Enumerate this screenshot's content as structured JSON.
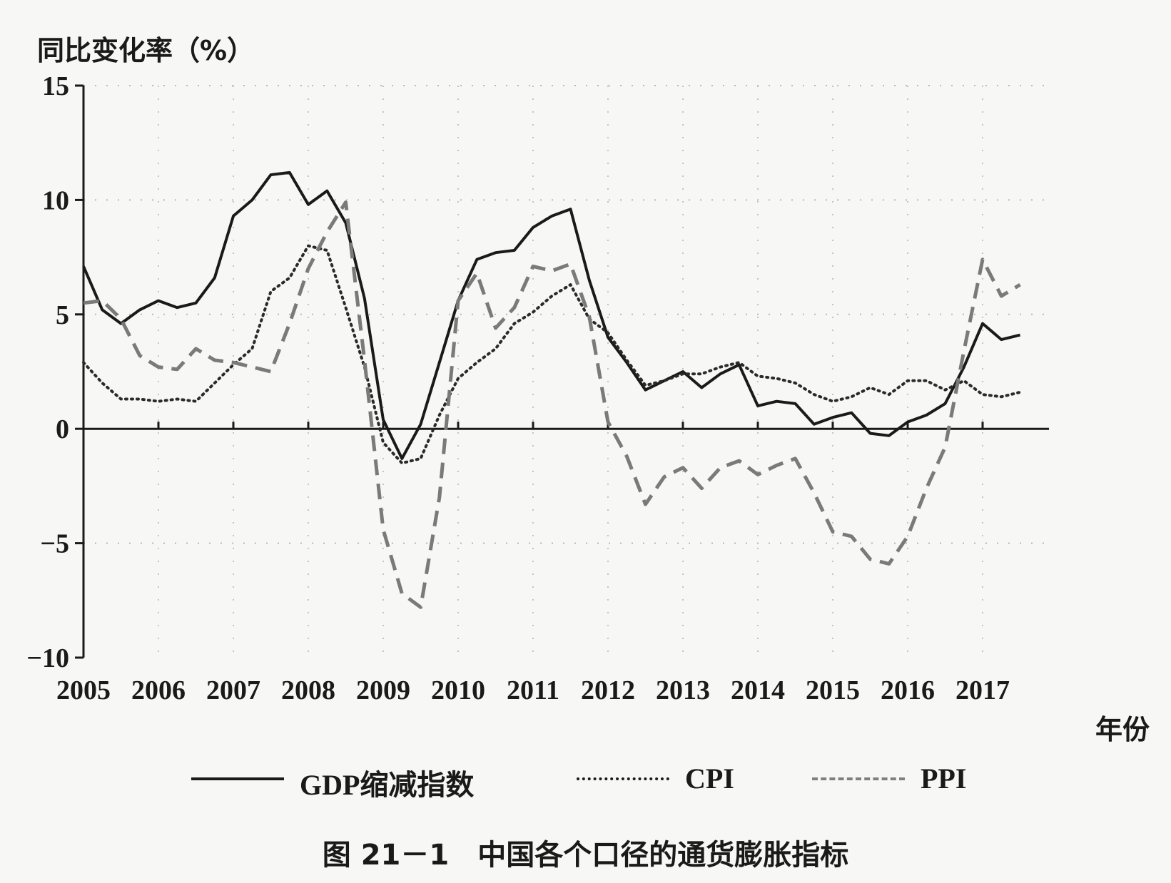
{
  "chart_data": {
    "type": "line",
    "ylabel": "同比变化率（%）",
    "xlabel": "年份",
    "ylim": [
      -10,
      15
    ],
    "yticks": [
      -10,
      -5,
      0,
      5,
      10,
      15
    ],
    "xlim": [
      2005,
      2018.2
    ],
    "xticks": [
      "2005",
      "2006",
      "2007",
      "2008",
      "2009",
      "2010",
      "2011",
      "2012",
      "2013",
      "2014",
      "2015",
      "2016",
      "2017"
    ],
    "grid": true,
    "legend_position": "bottom",
    "series": [
      {
        "name": "GDP缩减指数",
        "style": "solid",
        "points": [
          [
            2005.0,
            7.1
          ],
          [
            2005.25,
            5.2
          ],
          [
            2005.5,
            4.6
          ],
          [
            2005.75,
            5.2
          ],
          [
            2006.0,
            5.6
          ],
          [
            2006.25,
            5.3
          ],
          [
            2006.5,
            5.5
          ],
          [
            2006.75,
            6.6
          ],
          [
            2007.0,
            9.3
          ],
          [
            2007.25,
            10.0
          ],
          [
            2007.5,
            11.1
          ],
          [
            2007.75,
            11.2
          ],
          [
            2008.0,
            9.8
          ],
          [
            2008.25,
            10.4
          ],
          [
            2008.5,
            9.0
          ],
          [
            2008.75,
            5.7
          ],
          [
            2009.0,
            0.4
          ],
          [
            2009.25,
            -1.3
          ],
          [
            2009.5,
            0.2
          ],
          [
            2009.75,
            2.9
          ],
          [
            2010.0,
            5.6
          ],
          [
            2010.25,
            7.4
          ],
          [
            2010.5,
            7.7
          ],
          [
            2010.75,
            7.8
          ],
          [
            2011.0,
            8.8
          ],
          [
            2011.25,
            9.3
          ],
          [
            2011.5,
            9.6
          ],
          [
            2011.75,
            6.5
          ],
          [
            2012.0,
            4.0
          ],
          [
            2012.25,
            2.9
          ],
          [
            2012.5,
            1.7
          ],
          [
            2012.75,
            2.1
          ],
          [
            2013.0,
            2.5
          ],
          [
            2013.25,
            1.8
          ],
          [
            2013.5,
            2.4
          ],
          [
            2013.75,
            2.8
          ],
          [
            2014.0,
            1.0
          ],
          [
            2014.25,
            1.2
          ],
          [
            2014.5,
            1.1
          ],
          [
            2014.75,
            0.2
          ],
          [
            2015.0,
            0.5
          ],
          [
            2015.25,
            0.7
          ],
          [
            2015.5,
            -0.2
          ],
          [
            2015.75,
            -0.3
          ],
          [
            2016.0,
            0.3
          ],
          [
            2016.25,
            0.6
          ],
          [
            2016.5,
            1.1
          ],
          [
            2016.75,
            2.7
          ],
          [
            2017.0,
            4.6
          ],
          [
            2017.25,
            3.9
          ],
          [
            2017.5,
            4.1
          ]
        ]
      },
      {
        "name": "CPI",
        "style": "dotted",
        "points": [
          [
            2005.0,
            2.9
          ],
          [
            2005.25,
            2.0
          ],
          [
            2005.5,
            1.3
          ],
          [
            2005.75,
            1.3
          ],
          [
            2006.0,
            1.2
          ],
          [
            2006.25,
            1.3
          ],
          [
            2006.5,
            1.2
          ],
          [
            2006.75,
            2.0
          ],
          [
            2007.0,
            2.8
          ],
          [
            2007.25,
            3.5
          ],
          [
            2007.5,
            6.0
          ],
          [
            2007.75,
            6.6
          ],
          [
            2008.0,
            8.0
          ],
          [
            2008.25,
            7.8
          ],
          [
            2008.5,
            5.3
          ],
          [
            2008.75,
            2.7
          ],
          [
            2009.0,
            -0.6
          ],
          [
            2009.25,
            -1.5
          ],
          [
            2009.5,
            -1.3
          ],
          [
            2009.75,
            0.6
          ],
          [
            2010.0,
            2.2
          ],
          [
            2010.25,
            2.9
          ],
          [
            2010.5,
            3.5
          ],
          [
            2010.75,
            4.6
          ],
          [
            2011.0,
            5.1
          ],
          [
            2011.25,
            5.8
          ],
          [
            2011.5,
            6.3
          ],
          [
            2011.75,
            4.8
          ],
          [
            2012.0,
            4.2
          ],
          [
            2012.25,
            3.0
          ],
          [
            2012.5,
            1.9
          ],
          [
            2012.75,
            2.1
          ],
          [
            2013.0,
            2.4
          ],
          [
            2013.25,
            2.4
          ],
          [
            2013.5,
            2.7
          ],
          [
            2013.75,
            2.9
          ],
          [
            2014.0,
            2.3
          ],
          [
            2014.25,
            2.2
          ],
          [
            2014.5,
            2.0
          ],
          [
            2014.75,
            1.5
          ],
          [
            2015.0,
            1.2
          ],
          [
            2015.25,
            1.4
          ],
          [
            2015.5,
            1.8
          ],
          [
            2015.75,
            1.5
          ],
          [
            2016.0,
            2.1
          ],
          [
            2016.25,
            2.1
          ],
          [
            2016.5,
            1.7
          ],
          [
            2016.75,
            2.1
          ],
          [
            2017.0,
            1.5
          ],
          [
            2017.25,
            1.4
          ],
          [
            2017.5,
            1.6
          ]
        ]
      },
      {
        "name": "PPI",
        "style": "dashed",
        "points": [
          [
            2005.0,
            5.5
          ],
          [
            2005.25,
            5.6
          ],
          [
            2005.5,
            4.8
          ],
          [
            2005.75,
            3.2
          ],
          [
            2006.0,
            2.7
          ],
          [
            2006.25,
            2.6
          ],
          [
            2006.5,
            3.5
          ],
          [
            2006.75,
            3.0
          ],
          [
            2007.0,
            2.9
          ],
          [
            2007.25,
            2.7
          ],
          [
            2007.5,
            2.5
          ],
          [
            2007.75,
            4.6
          ],
          [
            2008.0,
            7.0
          ],
          [
            2008.25,
            8.6
          ],
          [
            2008.5,
            9.9
          ],
          [
            2008.75,
            3.0
          ],
          [
            2009.0,
            -4.4
          ],
          [
            2009.25,
            -7.2
          ],
          [
            2009.5,
            -7.8
          ],
          [
            2009.75,
            -3.0
          ],
          [
            2010.0,
            5.6
          ],
          [
            2010.25,
            6.8
          ],
          [
            2010.5,
            4.4
          ],
          [
            2010.75,
            5.3
          ],
          [
            2011.0,
            7.1
          ],
          [
            2011.25,
            6.9
          ],
          [
            2011.5,
            7.2
          ],
          [
            2011.75,
            4.9
          ],
          [
            2012.0,
            0.3
          ],
          [
            2012.25,
            -1.2
          ],
          [
            2012.5,
            -3.3
          ],
          [
            2012.75,
            -2.1
          ],
          [
            2013.0,
            -1.7
          ],
          [
            2013.25,
            -2.6
          ],
          [
            2013.5,
            -1.7
          ],
          [
            2013.75,
            -1.4
          ],
          [
            2014.0,
            -2.0
          ],
          [
            2014.25,
            -1.6
          ],
          [
            2014.5,
            -1.3
          ],
          [
            2014.75,
            -2.8
          ],
          [
            2015.0,
            -4.5
          ],
          [
            2015.25,
            -4.7
          ],
          [
            2015.5,
            -5.7
          ],
          [
            2015.75,
            -5.9
          ],
          [
            2016.0,
            -4.7
          ],
          [
            2016.25,
            -2.6
          ],
          [
            2016.5,
            -0.8
          ],
          [
            2016.75,
            3.4
          ],
          [
            2017.0,
            7.4
          ],
          [
            2017.25,
            5.8
          ],
          [
            2017.5,
            6.3
          ]
        ]
      }
    ]
  },
  "legend": [
    {
      "label": "GDP缩减指数"
    },
    {
      "label": "CPI"
    },
    {
      "label": "PPI"
    }
  ],
  "caption": "图 21－1　中国各个口径的通货膨胀指标"
}
